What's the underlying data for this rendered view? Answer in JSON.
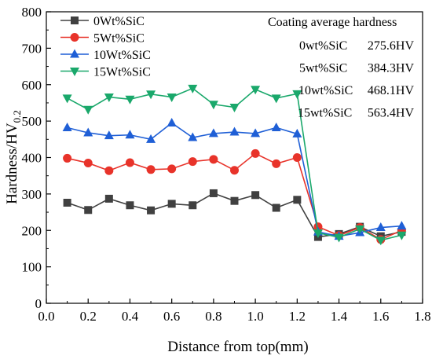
{
  "chart_data": {
    "type": "line",
    "xlabel": "Distance from top(mm)",
    "ylabel": {
      "main": "Hardness/HV",
      "sub": "0.2"
    },
    "xlim": [
      0.0,
      1.8
    ],
    "ylim": [
      0,
      800
    ],
    "x_ticks": [
      "0.0",
      "0.2",
      "0.4",
      "0.6",
      "0.8",
      "1.0",
      "1.2",
      "1.4",
      "1.6",
      "1.8"
    ],
    "y_ticks": [
      "0",
      "100",
      "200",
      "300",
      "400",
      "500",
      "600",
      "700",
      "800"
    ],
    "grid": false,
    "legend_position": "top-left",
    "x": [
      0.1,
      0.2,
      0.3,
      0.4,
      0.5,
      0.6,
      0.7,
      0.8,
      0.9,
      1.0,
      1.1,
      1.2,
      1.3,
      1.4,
      1.5,
      1.6,
      1.7
    ],
    "series": [
      {
        "name": "0Wt%SiC",
        "color": "#404040",
        "marker": "square",
        "values": [
          276,
          256,
          287,
          269,
          255,
          273,
          269,
          302,
          281,
          297,
          262,
          284,
          182,
          190,
          210,
          184,
          196
        ]
      },
      {
        "name": "5Wt%SiC",
        "color": "#e8332a",
        "marker": "circle",
        "values": [
          398,
          385,
          364,
          386,
          367,
          369,
          389,
          395,
          365,
          411,
          383,
          400,
          210,
          186,
          208,
          175,
          200
        ]
      },
      {
        "name": "10Wt%SiC",
        "color": "#1f5fd6",
        "marker": "triangle-up",
        "values": [
          482,
          468,
          460,
          462,
          450,
          495,
          455,
          466,
          470,
          466,
          482,
          465,
          196,
          184,
          194,
          208,
          212
        ]
      },
      {
        "name": "15Wt%SiC",
        "color": "#1aa86b",
        "marker": "triangle-down",
        "values": [
          563,
          532,
          566,
          560,
          574,
          566,
          590,
          546,
          538,
          587,
          563,
          575,
          193,
          181,
          204,
          173,
          187
        ]
      }
    ],
    "annotation": {
      "title": "Coating average hardness",
      "rows": [
        {
          "label": "0wt%SiC",
          "value": "275.6HV"
        },
        {
          "label": "5wt%SiC",
          "value": "384.3HV"
        },
        {
          "label": "10wt%SiC",
          "value": "468.1HV"
        },
        {
          "label": "15wt%SiC",
          "value": "563.4HV"
        }
      ]
    }
  }
}
